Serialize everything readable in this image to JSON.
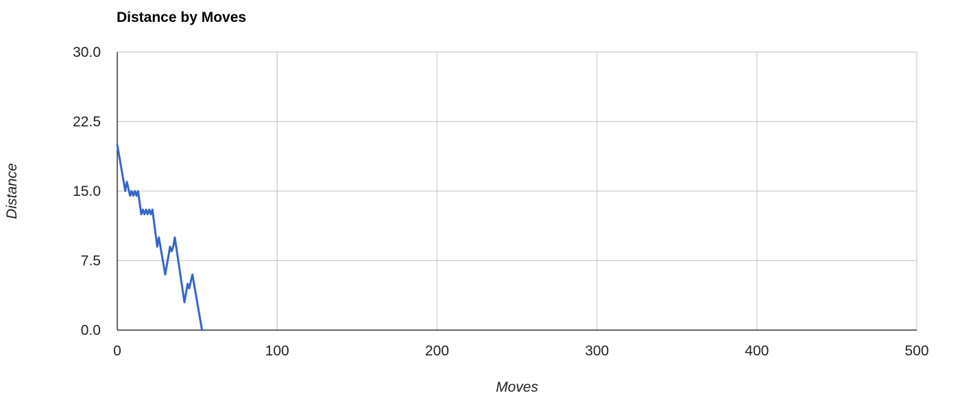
{
  "chart_data": {
    "type": "line",
    "title": "Distance by Moves",
    "xlabel": "Moves",
    "ylabel": "Distance",
    "xlim": [
      0,
      500
    ],
    "ylim": [
      0,
      30
    ],
    "x_ticks": [
      "0",
      "100",
      "200",
      "300",
      "400",
      "500"
    ],
    "y_ticks": [
      "0.0",
      "7.5",
      "15.0",
      "22.5",
      "30.0"
    ],
    "grid": true,
    "legend": "none",
    "series": [
      {
        "color": "#3366cc",
        "points": [
          [
            0,
            20
          ],
          [
            5,
            15
          ],
          [
            6,
            16
          ],
          [
            8,
            14.5
          ],
          [
            9,
            15
          ],
          [
            10,
            14.5
          ],
          [
            11,
            15
          ],
          [
            12,
            14.5
          ],
          [
            13,
            15
          ],
          [
            15,
            12.5
          ],
          [
            16,
            13
          ],
          [
            17,
            12.5
          ],
          [
            18,
            13
          ],
          [
            19,
            12.5
          ],
          [
            20,
            13
          ],
          [
            21,
            12.5
          ],
          [
            22,
            13
          ],
          [
            25,
            9
          ],
          [
            26,
            10
          ],
          [
            27,
            9
          ],
          [
            30,
            6
          ],
          [
            33,
            9
          ],
          [
            34,
            8.5
          ],
          [
            35,
            9
          ],
          [
            36,
            10
          ],
          [
            42,
            3
          ],
          [
            44,
            5
          ],
          [
            45,
            4.5
          ],
          [
            47,
            6
          ],
          [
            53,
            0
          ]
        ]
      }
    ]
  }
}
